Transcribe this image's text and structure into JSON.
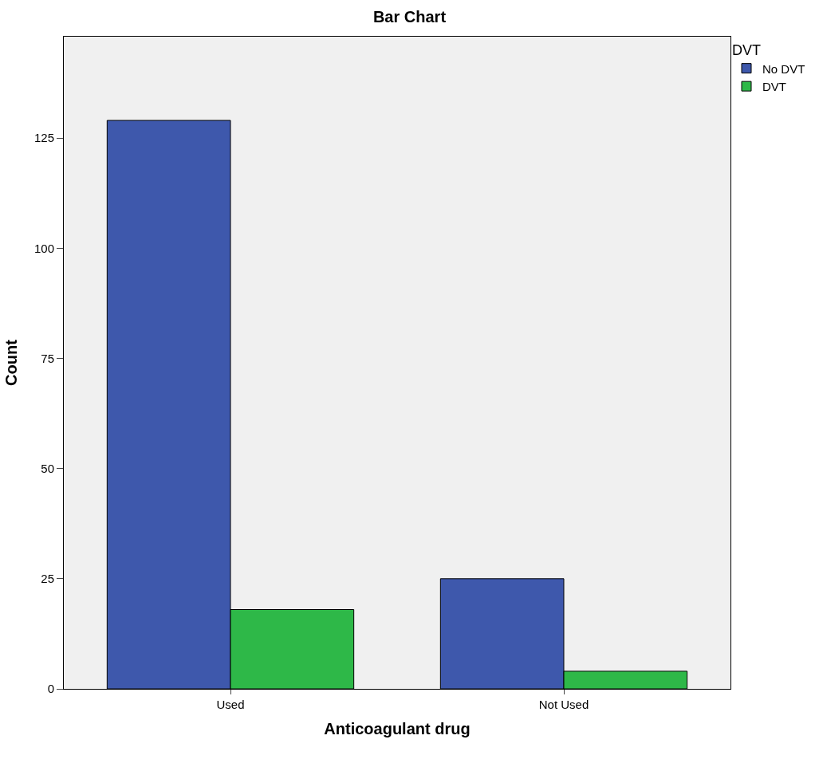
{
  "chart_data": {
    "type": "bar",
    "title": "Bar Chart",
    "xlabel": "Anticoagulant drug",
    "ylabel": "Count",
    "legend_title": "DVT",
    "categories": [
      "Used",
      "Not Used"
    ],
    "series": [
      {
        "name": "No DVT",
        "color": "#3e58ac",
        "values": [
          129,
          25
        ]
      },
      {
        "name": "DVT",
        "color": "#2eb848",
        "values": [
          18,
          4
        ]
      }
    ],
    "ylim": [
      0,
      148
    ],
    "yticks": [
      0,
      25,
      50,
      75,
      100,
      125
    ],
    "grid": false,
    "legend": "top right"
  }
}
